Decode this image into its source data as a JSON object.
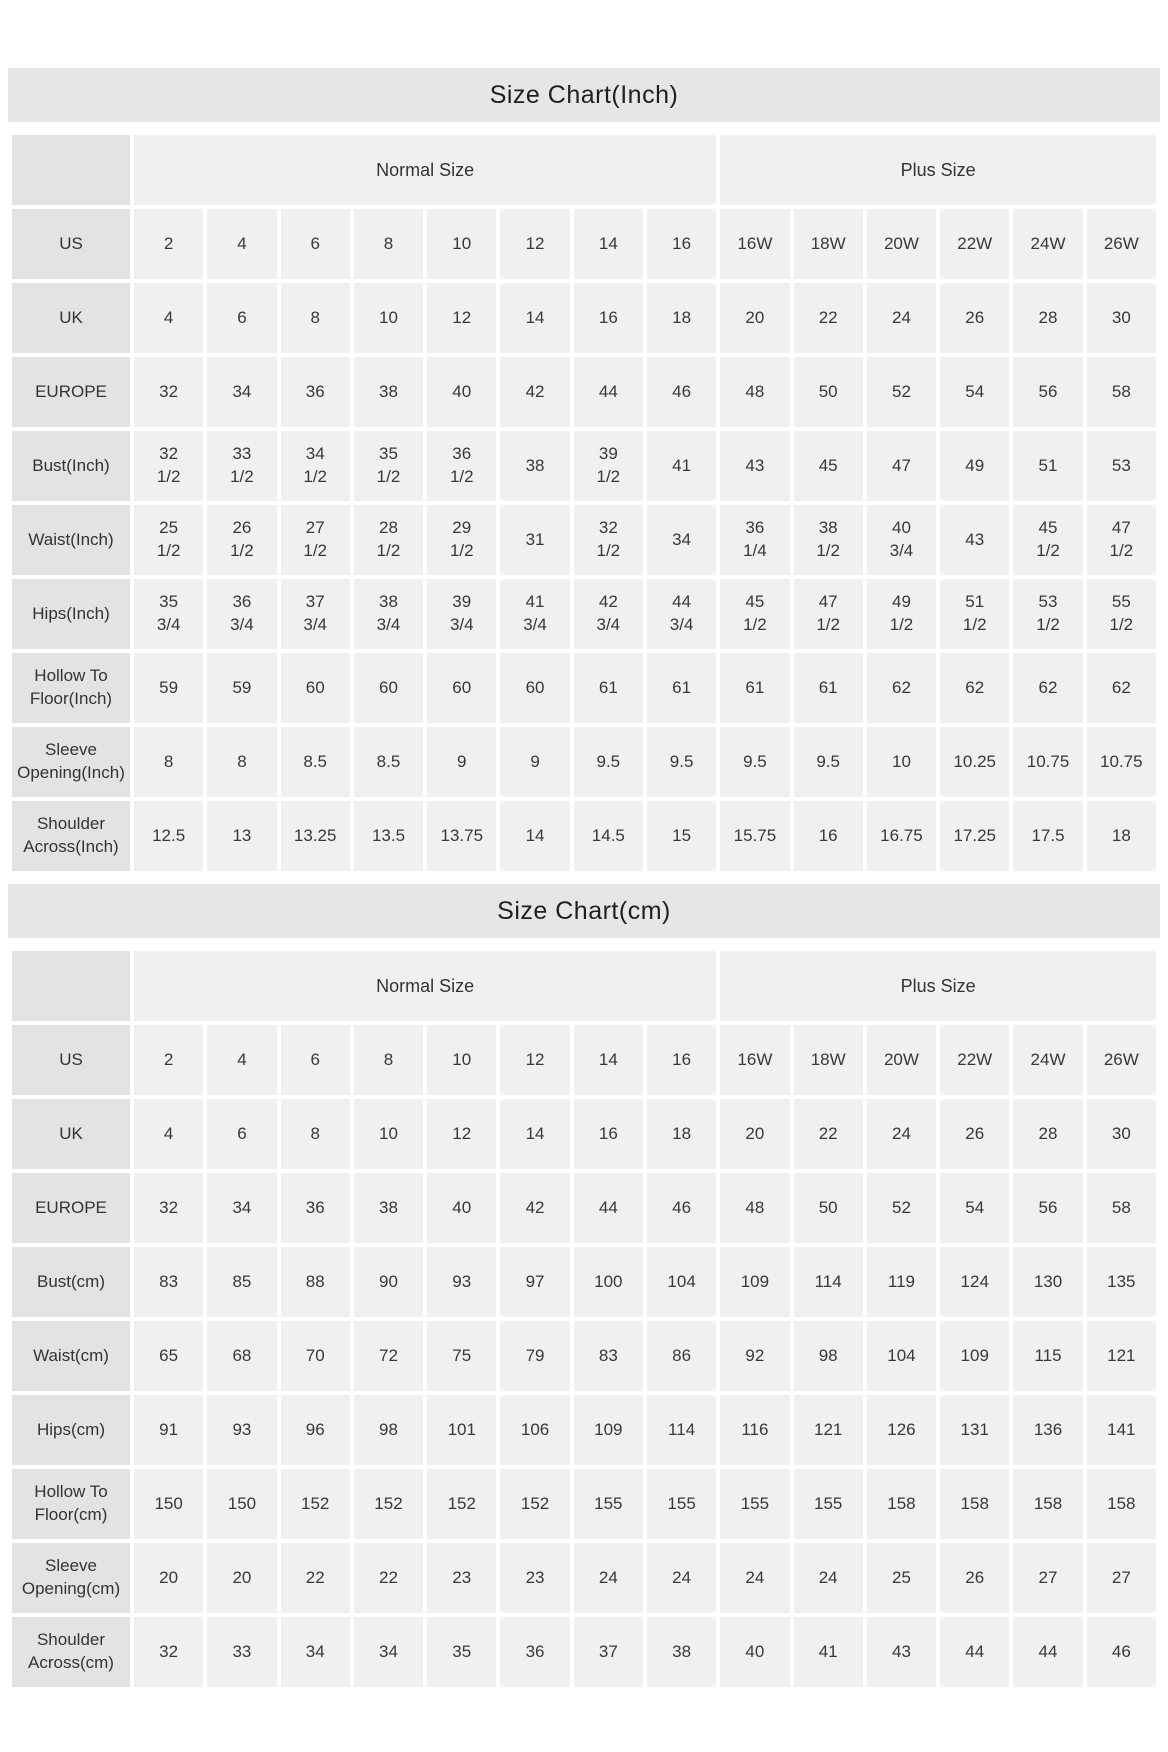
{
  "colors": {
    "title_band_bg": "#e6e6e6",
    "row_label_bg": "#e3e3e3",
    "value_cell_bg": "#f0f0f0",
    "text": "#333333"
  },
  "chart_data": [
    {
      "type": "table",
      "title": "Size Chart(Inch)",
      "group_headers": [
        {
          "label": "Normal Size",
          "span": 8
        },
        {
          "label": "Plus Size",
          "span": 6
        }
      ],
      "rows": [
        {
          "label": "US",
          "values": [
            "2",
            "4",
            "6",
            "8",
            "10",
            "12",
            "14",
            "16",
            "16W",
            "18W",
            "20W",
            "22W",
            "24W",
            "26W"
          ]
        },
        {
          "label": "UK",
          "values": [
            "4",
            "6",
            "8",
            "10",
            "12",
            "14",
            "16",
            "18",
            "20",
            "22",
            "24",
            "26",
            "28",
            "30"
          ]
        },
        {
          "label": "EUROPE",
          "values": [
            "32",
            "34",
            "36",
            "38",
            "40",
            "42",
            "44",
            "46",
            "48",
            "50",
            "52",
            "54",
            "56",
            "58"
          ]
        },
        {
          "label": "Bust(Inch)",
          "values": [
            "32\n1/2",
            "33\n1/2",
            "34\n1/2",
            "35\n1/2",
            "36\n1/2",
            "38",
            "39\n1/2",
            "41",
            "43",
            "45",
            "47",
            "49",
            "51",
            "53"
          ]
        },
        {
          "label": "Waist(Inch)",
          "values": [
            "25\n1/2",
            "26\n1/2",
            "27\n1/2",
            "28\n1/2",
            "29\n1/2",
            "31",
            "32\n1/2",
            "34",
            "36\n1/4",
            "38\n1/2",
            "40\n3/4",
            "43",
            "45\n1/2",
            "47\n1/2"
          ]
        },
        {
          "label": "Hips(Inch)",
          "values": [
            "35\n3/4",
            "36\n3/4",
            "37\n3/4",
            "38\n3/4",
            "39\n3/4",
            "41\n3/4",
            "42\n3/4",
            "44\n3/4",
            "45\n1/2",
            "47\n1/2",
            "49\n1/2",
            "51\n1/2",
            "53\n1/2",
            "55\n1/2"
          ]
        },
        {
          "label": "Hollow To Floor(Inch)",
          "values": [
            "59",
            "59",
            "60",
            "60",
            "60",
            "60",
            "61",
            "61",
            "61",
            "61",
            "62",
            "62",
            "62",
            "62"
          ]
        },
        {
          "label": "Sleeve Opening(Inch)",
          "values": [
            "8",
            "8",
            "8.5",
            "8.5",
            "9",
            "9",
            "9.5",
            "9.5",
            "9.5",
            "9.5",
            "10",
            "10.25",
            "10.75",
            "10.75"
          ]
        },
        {
          "label": "Shoulder Across(Inch)",
          "values": [
            "12.5",
            "13",
            "13.25",
            "13.5",
            "13.75",
            "14",
            "14.5",
            "15",
            "15.75",
            "16",
            "16.75",
            "17.25",
            "17.5",
            "18"
          ]
        }
      ]
    },
    {
      "type": "table",
      "title": "Size Chart(cm)",
      "group_headers": [
        {
          "label": "Normal Size",
          "span": 8
        },
        {
          "label": "Plus Size",
          "span": 6
        }
      ],
      "rows": [
        {
          "label": "US",
          "values": [
            "2",
            "4",
            "6",
            "8",
            "10",
            "12",
            "14",
            "16",
            "16W",
            "18W",
            "20W",
            "22W",
            "24W",
            "26W"
          ]
        },
        {
          "label": "UK",
          "values": [
            "4",
            "6",
            "8",
            "10",
            "12",
            "14",
            "16",
            "18",
            "20",
            "22",
            "24",
            "26",
            "28",
            "30"
          ]
        },
        {
          "label": "EUROPE",
          "values": [
            "32",
            "34",
            "36",
            "38",
            "40",
            "42",
            "44",
            "46",
            "48",
            "50",
            "52",
            "54",
            "56",
            "58"
          ]
        },
        {
          "label": "Bust(cm)",
          "values": [
            "83",
            "85",
            "88",
            "90",
            "93",
            "97",
            "100",
            "104",
            "109",
            "114",
            "119",
            "124",
            "130",
            "135"
          ]
        },
        {
          "label": "Waist(cm)",
          "values": [
            "65",
            "68",
            "70",
            "72",
            "75",
            "79",
            "83",
            "86",
            "92",
            "98",
            "104",
            "109",
            "115",
            "121"
          ]
        },
        {
          "label": "Hips(cm)",
          "values": [
            "91",
            "93",
            "96",
            "98",
            "101",
            "106",
            "109",
            "114",
            "116",
            "121",
            "126",
            "131",
            "136",
            "141"
          ]
        },
        {
          "label": "Hollow To Floor(cm)",
          "values": [
            "150",
            "150",
            "152",
            "152",
            "152",
            "152",
            "155",
            "155",
            "155",
            "155",
            "158",
            "158",
            "158",
            "158"
          ]
        },
        {
          "label": "Sleeve Opening(cm)",
          "values": [
            "20",
            "20",
            "22",
            "22",
            "23",
            "23",
            "24",
            "24",
            "24",
            "24",
            "25",
            "26",
            "27",
            "27"
          ]
        },
        {
          "label": "Shoulder Across(cm)",
          "values": [
            "32",
            "33",
            "34",
            "34",
            "35",
            "36",
            "37",
            "38",
            "40",
            "41",
            "43",
            "44",
            "44",
            "46"
          ]
        }
      ]
    }
  ]
}
